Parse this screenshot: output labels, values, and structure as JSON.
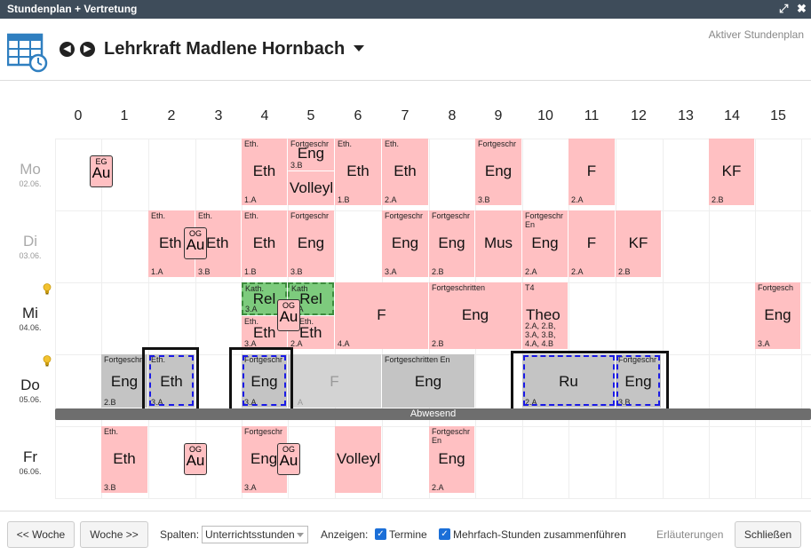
{
  "window": {
    "title": "Stundenplan + Vertretung",
    "maximize_icon": "expand-icon",
    "close_icon": "close-icon"
  },
  "header": {
    "icon": "calendar-clock-icon",
    "teacher": "Lehrkraft Madlene Hornbach",
    "status": "Aktiver Stundenplan"
  },
  "columns": [
    "0",
    "1",
    "2",
    "3",
    "4",
    "5",
    "6",
    "7",
    "8",
    "9",
    "10",
    "11",
    "12",
    "13",
    "14",
    "15"
  ],
  "days": [
    {
      "name": "Mo",
      "date": "02.06.",
      "color": "#aaaaaa"
    },
    {
      "name": "Di",
      "date": "03.06.",
      "color": "#aaaaaa"
    },
    {
      "name": "Mi",
      "date": "04.06.",
      "color": "#222222"
    },
    {
      "name": "Do",
      "date": "05.06.",
      "color": "#222222"
    },
    {
      "name": "Fr",
      "date": "06.06.",
      "color": "#222222"
    }
  ],
  "lessons": {
    "mo_eth4": {
      "sub": "Eth.",
      "main": "Eth",
      "cls": "1.A"
    },
    "mo_eng5": {
      "sub": "Fortgeschr",
      "main": "Eng",
      "cls": "3.B"
    },
    "mo_volley5": {
      "main": "Volleyl"
    },
    "mo_eth6": {
      "sub": "Eth.",
      "main": "Eth",
      "cls": "1.B"
    },
    "mo_eth7": {
      "sub": "Eth.",
      "main": "Eth",
      "cls": "2.A"
    },
    "mo_eng9": {
      "sub": "Fortgeschr",
      "main": "Eng",
      "cls": "3.B"
    },
    "mo_f11": {
      "main": "F",
      "cls": "2.A"
    },
    "mo_kf14": {
      "main": "KF",
      "cls": "2.B"
    },
    "di_eth2": {
      "sub": "Eth.",
      "main": "Eth",
      "cls": "1.A"
    },
    "di_eth3": {
      "sub": "Eth.",
      "main": "Eth",
      "cls": "3.B"
    },
    "di_eth4": {
      "sub": "Eth.",
      "main": "Eth",
      "cls": "1.B"
    },
    "di_eng5": {
      "sub": "Fortgeschr",
      "main": "Eng",
      "cls": "3.B"
    },
    "di_eng7": {
      "sub": "Fortgeschr",
      "main": "Eng",
      "cls": "3.A"
    },
    "di_eng8": {
      "sub": "Fortgeschr",
      "main": "Eng",
      "cls": "2.B"
    },
    "di_mus9": {
      "main": "Mus"
    },
    "di_eng10": {
      "sub": "Fortgeschr",
      "sub2": "En",
      "main": "Eng",
      "cls": "2.A"
    },
    "di_f11": {
      "main": "F",
      "cls": "2.A"
    },
    "di_kf12": {
      "main": "KF",
      "cls": "2.B"
    },
    "mi_rel4": {
      "sub": "Kath.",
      "main": "Rel",
      "cls": "3.A"
    },
    "mi_rel5": {
      "sub": "Kath",
      "main": "Rel",
      "cls": "2.A"
    },
    "mi_eth4": {
      "sub": "Eth.",
      "main": "Eth",
      "cls": "3.A"
    },
    "mi_eth5": {
      "sub": "Eth.",
      "main": "Eth",
      "cls": "2.A"
    },
    "mi_f6": {
      "main": "F",
      "cls": "4.A"
    },
    "mi_eng8": {
      "sub": "Fortgeschritten",
      "main": "Eng",
      "cls": "2.B"
    },
    "mi_theo10": {
      "sub": "T4",
      "main": "Theo",
      "cls": "2.A, 2.B, 3.A, 3.B, 4.A, 4.B"
    },
    "mi_eng15": {
      "sub": "Fortgesch",
      "main": "Eng",
      "cls": "3.A"
    },
    "do_eng1": {
      "sub": "Fortgeschr",
      "main": "Eng",
      "cls": "2.B"
    },
    "do_eth2": {
      "sub": "Eth.",
      "main": "Eth",
      "cls": "3.A"
    },
    "do_eng4": {
      "sub": "Fortgeschr",
      "main": "Eng",
      "cls": "3.A"
    },
    "do_f5": {
      "main": "F",
      "cls": "A"
    },
    "do_eng7": {
      "sub": "Fortgeschritten En",
      "main": "Eng"
    },
    "do_ru10": {
      "main": "Ru",
      "cls": "2.A"
    },
    "do_eng12": {
      "sub": "Fortgeschr",
      "main": "Eng",
      "cls": "3.B"
    },
    "fr_eth1": {
      "sub": "Eth.",
      "main": "Eth",
      "cls": "3.B"
    },
    "fr_eng4": {
      "sub": "Fortgeschr",
      "main": "Eng",
      "cls": "3.A"
    },
    "fr_volley6": {
      "main": "Volleyl"
    },
    "fr_eng8": {
      "sub": "Fortgeschr",
      "sub2": "En",
      "main": "Eng",
      "cls": "2.A"
    }
  },
  "termine": {
    "mo1": {
      "og": "EG",
      "main": "Au"
    },
    "di3": {
      "og": "OG",
      "main": "Au"
    },
    "mi5": {
      "og": "OG",
      "main": "Au"
    },
    "fr2": {
      "og": "OG",
      "main": "Au"
    },
    "fr5": {
      "og": "OG",
      "main": "Au"
    }
  },
  "absent_bar": "Abwesend",
  "footer": {
    "prev_week": "<< Woche",
    "next_week": "Woche >>",
    "spalten_label": "Spalten:",
    "spalten_value": "Unterrichtsstunden",
    "anzeigen_label": "Anzeigen:",
    "termine_label": "Termine",
    "termine_checked": true,
    "merge_label": "Mehrfach-Stunden zusammenführen",
    "merge_checked": true,
    "explain": "Erläuterungen",
    "close": "Schließen"
  }
}
